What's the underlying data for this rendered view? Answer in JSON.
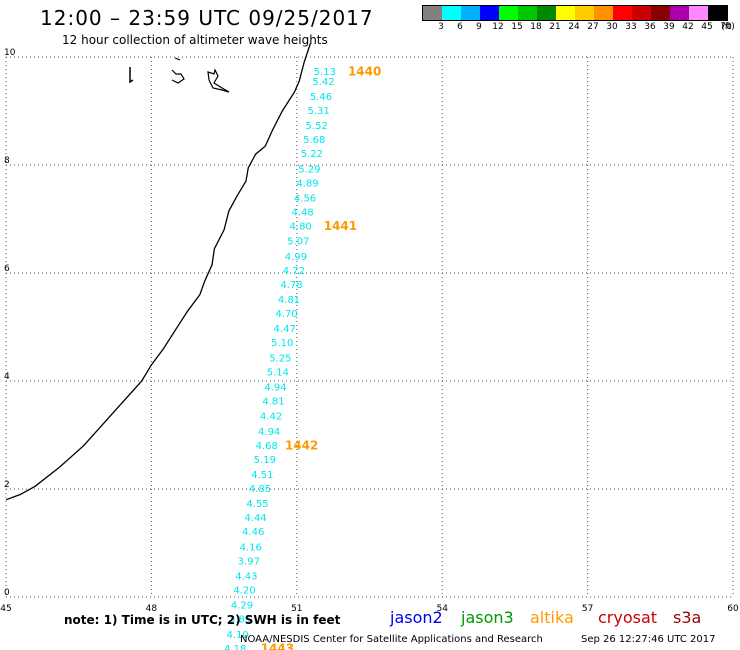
{
  "header": {
    "title": "12:00 – 23:59 UTC 09/25/2017",
    "subtitle": "12 hour collection of altimeter wave heights"
  },
  "color_scale": {
    "unit": "(ft)",
    "bins": [
      {
        "color": "#808080",
        "label": "3"
      },
      {
        "color": "#00ffff",
        "label": "6"
      },
      {
        "color": "#00b0ff",
        "label": "9"
      },
      {
        "color": "#0000ff",
        "label": "12"
      },
      {
        "color": "#00ff00",
        "label": "15"
      },
      {
        "color": "#00c800",
        "label": "18"
      },
      {
        "color": "#008800",
        "label": "21"
      },
      {
        "color": "#ffff00",
        "label": "24"
      },
      {
        "color": "#ffcc00",
        "label": "27"
      },
      {
        "color": "#ff9000",
        "label": "30"
      },
      {
        "color": "#ff0000",
        "label": "33"
      },
      {
        "color": "#cc0000",
        "label": "36"
      },
      {
        "color": "#880000",
        "label": "39"
      },
      {
        "color": "#aa00aa",
        "label": "42"
      },
      {
        "color": "#ff88ff",
        "label": "45"
      },
      {
        "color": "#000000",
        "label": "70"
      }
    ]
  },
  "axes": {
    "lon_ticks": [
      "45",
      "48",
      "51",
      "54",
      "57",
      "60"
    ],
    "lat_ticks": [
      "0",
      "2",
      "4",
      "6",
      "8",
      "10"
    ]
  },
  "track": {
    "color": "#00e5ee",
    "points": [
      {
        "lat": 9.72,
        "lon": 51.58,
        "swh": "5.13"
      },
      {
        "lat": 9.54,
        "lon": 51.55,
        "swh": "5.42"
      },
      {
        "lat": 9.26,
        "lon": 51.5,
        "swh": "5.46"
      },
      {
        "lat": 9.0,
        "lon": 51.45,
        "swh": "5.31"
      },
      {
        "lat": 8.72,
        "lon": 51.41,
        "swh": "5.52"
      },
      {
        "lat": 8.46,
        "lon": 51.36,
        "swh": "5.68"
      },
      {
        "lat": 8.2,
        "lon": 51.31,
        "swh": "5.22"
      },
      {
        "lat": 7.92,
        "lon": 51.26,
        "swh": "5.29"
      },
      {
        "lat": 7.66,
        "lon": 51.22,
        "swh": "4.89"
      },
      {
        "lat": 7.38,
        "lon": 51.17,
        "swh": "4.56"
      },
      {
        "lat": 7.12,
        "lon": 51.12,
        "swh": "4.48"
      },
      {
        "lat": 6.86,
        "lon": 51.08,
        "swh": "4.80"
      },
      {
        "lat": 6.58,
        "lon": 51.03,
        "swh": "5.07"
      },
      {
        "lat": 6.3,
        "lon": 50.98,
        "swh": "4.99"
      },
      {
        "lat": 6.04,
        "lon": 50.94,
        "swh": "4.72"
      },
      {
        "lat": 5.78,
        "lon": 50.89,
        "swh": "4.78"
      },
      {
        "lat": 5.5,
        "lon": 50.84,
        "swh": "4.81"
      },
      {
        "lat": 5.24,
        "lon": 50.79,
        "swh": "4.70"
      },
      {
        "lat": 4.96,
        "lon": 50.75,
        "swh": "4.47"
      },
      {
        "lat": 4.7,
        "lon": 50.7,
        "swh": "5.10"
      },
      {
        "lat": 4.42,
        "lon": 50.66,
        "swh": "5.25"
      },
      {
        "lat": 4.16,
        "lon": 50.61,
        "swh": "5.14"
      },
      {
        "lat": 3.88,
        "lon": 50.56,
        "swh": "4.94"
      },
      {
        "lat": 3.62,
        "lon": 50.52,
        "swh": "4.81"
      },
      {
        "lat": 3.34,
        "lon": 50.47,
        "swh": "4.42"
      },
      {
        "lat": 3.06,
        "lon": 50.43,
        "swh": "4.94"
      },
      {
        "lat": 2.8,
        "lon": 50.38,
        "swh": "4.68"
      },
      {
        "lat": 2.54,
        "lon": 50.34,
        "swh": "5.19"
      },
      {
        "lat": 2.26,
        "lon": 50.29,
        "swh": "4.51"
      },
      {
        "lat": 2.0,
        "lon": 50.24,
        "swh": "4.85"
      },
      {
        "lat": 1.72,
        "lon": 50.19,
        "swh": "4.55"
      },
      {
        "lat": 1.46,
        "lon": 50.15,
        "swh": "4.44"
      },
      {
        "lat": 1.2,
        "lon": 50.1,
        "swh": "4.46"
      },
      {
        "lat": 0.92,
        "lon": 50.05,
        "swh": "4.16"
      },
      {
        "lat": 0.66,
        "lon": 50.01,
        "swh": "3.97"
      },
      {
        "lat": 0.38,
        "lon": 49.96,
        "swh": "4.43"
      },
      {
        "lat": 0.12,
        "lon": 49.92,
        "swh": "4.20"
      },
      {
        "lat": -0.16,
        "lon": 49.87,
        "swh": "4.29"
      },
      {
        "lat": -0.42,
        "lon": 49.83,
        "swh": "3.85"
      },
      {
        "lat": -0.7,
        "lon": 49.78,
        "swh": "4.10"
      },
      {
        "lat": -0.96,
        "lon": 49.73,
        "swh": "4.18"
      }
    ]
  },
  "times": {
    "color": "#ff9900",
    "items": [
      {
        "label": "1440",
        "lat": 9.72,
        "lon": 52.4
      },
      {
        "label": "1441",
        "lat": 6.86,
        "lon": 51.9
      },
      {
        "label": "1442",
        "lat": 2.8,
        "lon": 51.1
      },
      {
        "label": "1443",
        "lat": -0.96,
        "lon": 50.6
      }
    ]
  },
  "coastline": [
    [
      45.0,
      1.8
    ],
    [
      45.3,
      1.9
    ],
    [
      45.6,
      2.05
    ],
    [
      46.1,
      2.4
    ],
    [
      46.6,
      2.8
    ],
    [
      47.0,
      3.2
    ],
    [
      47.4,
      3.6
    ],
    [
      47.8,
      4.0
    ],
    [
      48.0,
      4.3
    ],
    [
      48.25,
      4.6
    ],
    [
      48.5,
      4.95
    ],
    [
      48.75,
      5.3
    ],
    [
      49.0,
      5.6
    ],
    [
      49.1,
      5.85
    ],
    [
      49.25,
      6.15
    ],
    [
      49.3,
      6.45
    ],
    [
      49.5,
      6.8
    ],
    [
      49.6,
      7.15
    ],
    [
      49.75,
      7.4
    ],
    [
      49.95,
      7.7
    ],
    [
      50.0,
      7.95
    ],
    [
      50.15,
      8.2
    ],
    [
      50.35,
      8.35
    ],
    [
      50.5,
      8.65
    ],
    [
      50.7,
      9.0
    ],
    [
      50.95,
      9.35
    ],
    [
      51.05,
      9.55
    ],
    [
      51.15,
      9.9
    ],
    [
      51.28,
      10.25
    ]
  ],
  "notes": {
    "note": "note:  1) Time is in UTC;  2) SWH is in feet",
    "satellites": [
      {
        "name": "jason2",
        "color": "#0000ee"
      },
      {
        "name": "jason3",
        "color": "#009900"
      },
      {
        "name": "altika",
        "color": "#ff9900"
      },
      {
        "name": "cryosat",
        "color": "#cc0000"
      },
      {
        "name": "s3a",
        "color": "#990000"
      }
    ],
    "credit": "NOAA/NESDIS Center for Satellite Applications and Research",
    "timestamp": "Sep 26 12:27:46 UTC 2017"
  }
}
